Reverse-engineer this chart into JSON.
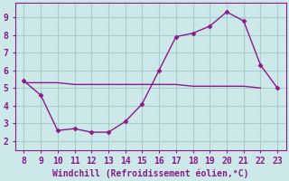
{
  "x": [
    8,
    9,
    10,
    11,
    12,
    13,
    14,
    15,
    16,
    17,
    18,
    19,
    20,
    21,
    22,
    23
  ],
  "y": [
    5.4,
    4.6,
    2.6,
    2.7,
    2.5,
    2.5,
    3.1,
    4.1,
    6.0,
    7.9,
    8.1,
    8.5,
    9.3,
    8.8,
    6.3,
    5.0
  ],
  "flat_x": [
    8,
    9,
    10,
    11,
    12,
    13,
    14,
    15,
    16,
    17,
    18,
    19,
    20,
    21,
    22
  ],
  "flat_y": [
    5.3,
    5.3,
    5.3,
    5.2,
    5.2,
    5.2,
    5.2,
    5.2,
    5.2,
    5.2,
    5.1,
    5.1,
    5.1,
    5.1,
    5.0
  ],
  "line_color": "#8b1a8b",
  "marker": "D",
  "marker_size": 2.5,
  "background_color": "#cce8e8",
  "grid_color": "#aacece",
  "xlabel": "Windchill (Refroidissement éolien,°C)",
  "xlabel_color": "#8b1a8b",
  "tick_color": "#8b1a8b",
  "spine_color": "#8b1a8b",
  "xlim": [
    7.5,
    23.5
  ],
  "ylim": [
    1.5,
    9.8
  ],
  "xticks": [
    8,
    9,
    10,
    11,
    12,
    13,
    14,
    15,
    16,
    17,
    18,
    19,
    20,
    21,
    22,
    23
  ],
  "yticks": [
    2,
    3,
    4,
    5,
    6,
    7,
    8,
    9
  ],
  "xlabel_fontsize": 7.0,
  "tick_fontsize": 7.0
}
